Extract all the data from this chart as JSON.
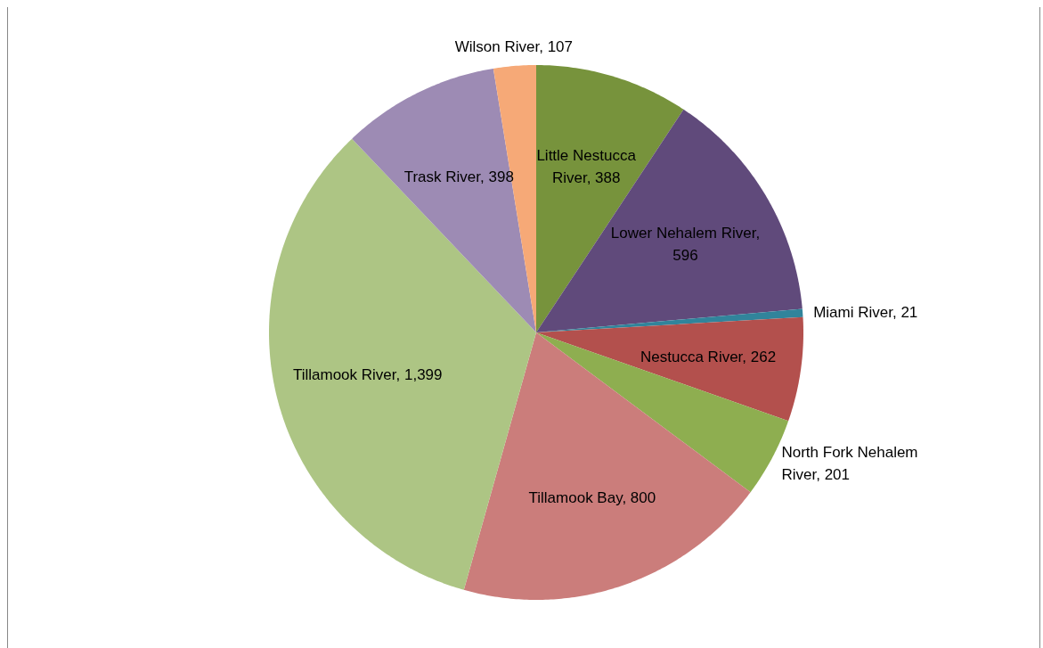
{
  "chart_data": {
    "type": "pie",
    "categories": [
      "Little Nestucca River",
      "Lower Nehalem River",
      "Miami River",
      "Nestucca River",
      "North Fork Nehalem River",
      "Tillamook Bay",
      "Tillamook River",
      "Trask River",
      "Wilson River"
    ],
    "values": [
      388,
      596,
      21,
      262,
      201,
      800,
      1399,
      398,
      107
    ],
    "colors": [
      "#77933c",
      "#604a7b",
      "#31849b",
      "#b3504d",
      "#8eae50",
      "#cb7d7b",
      "#adc584",
      "#9d8bb4",
      "#f6a977"
    ],
    "value_labels": [
      ",  388",
      ",  596",
      ",  21",
      ",  262",
      ",  201",
      ",  800",
      ",  1,399",
      ",  398",
      ",  107"
    ]
  }
}
